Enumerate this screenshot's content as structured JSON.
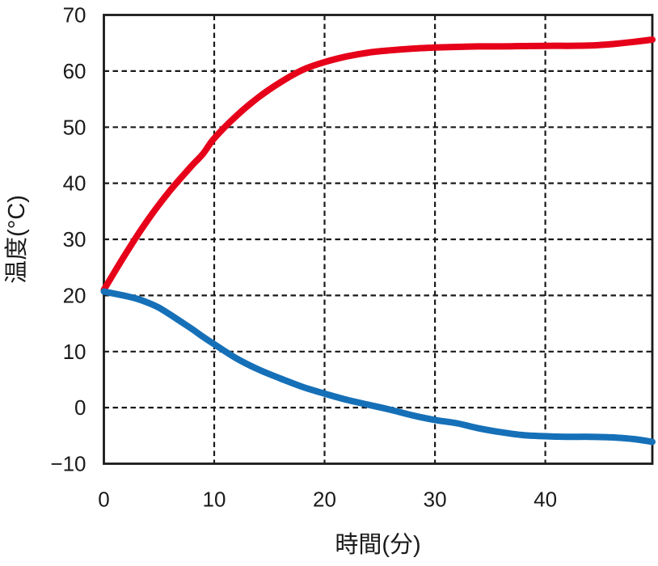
{
  "figure": {
    "background": "#ffffff",
    "axis_color": "#1a1a1a"
  },
  "chart_data": {
    "type": "line",
    "title": "",
    "xlabel": "時間(分)",
    "ylabel": "温度(°C)",
    "xlim": [
      0,
      49.7
    ],
    "ylim": [
      -10,
      70
    ],
    "xtick_values": [
      0,
      10,
      20,
      30,
      40
    ],
    "xtick_labels": [
      "0",
      "10",
      "20",
      "30",
      "40"
    ],
    "ytick_values": [
      -10,
      0,
      10,
      20,
      30,
      40,
      50,
      60,
      70
    ],
    "ytick_labels": [
      "−10",
      "0",
      "10",
      "20",
      "30",
      "40",
      "50",
      "60",
      "70"
    ],
    "x_gridlines": [
      10,
      20,
      30,
      40
    ],
    "y_gridlines": [
      0,
      10,
      20,
      30,
      40,
      50,
      60
    ],
    "grid_style": "dashed",
    "legend": "none",
    "x_shared": [
      0,
      1,
      2,
      3,
      4,
      5,
      6,
      7,
      8,
      9,
      10,
      12,
      14,
      16,
      18,
      20,
      22,
      24,
      26,
      28,
      30,
      32,
      34,
      36,
      38,
      40,
      42,
      44,
      46,
      48,
      49.7
    ],
    "series": [
      {
        "name": "red",
        "color": "#e60019",
        "y": [
          21,
          24.3,
          27.5,
          30.6,
          33.5,
          36.2,
          38.7,
          41,
          43.2,
          45.3,
          48,
          52,
          55.3,
          58,
          60.2,
          61.6,
          62.6,
          63.3,
          63.7,
          64,
          64.2,
          64.3,
          64.4,
          64.4,
          64.45,
          64.5,
          64.5,
          64.55,
          64.8,
          65.2,
          65.6
        ]
      },
      {
        "name": "blue",
        "color": "#1570b8",
        "y": [
          20.7,
          20.3,
          19.9,
          19.4,
          18.7,
          17.8,
          16.6,
          15.3,
          14,
          12.6,
          11.3,
          8.8,
          6.8,
          5.2,
          3.7,
          2.5,
          1.4,
          0.5,
          -0.4,
          -1.4,
          -2.2,
          -2.8,
          -3.7,
          -4.4,
          -4.9,
          -5.1,
          -5.2,
          -5.2,
          -5.3,
          -5.6,
          -6.1
        ]
      }
    ]
  }
}
